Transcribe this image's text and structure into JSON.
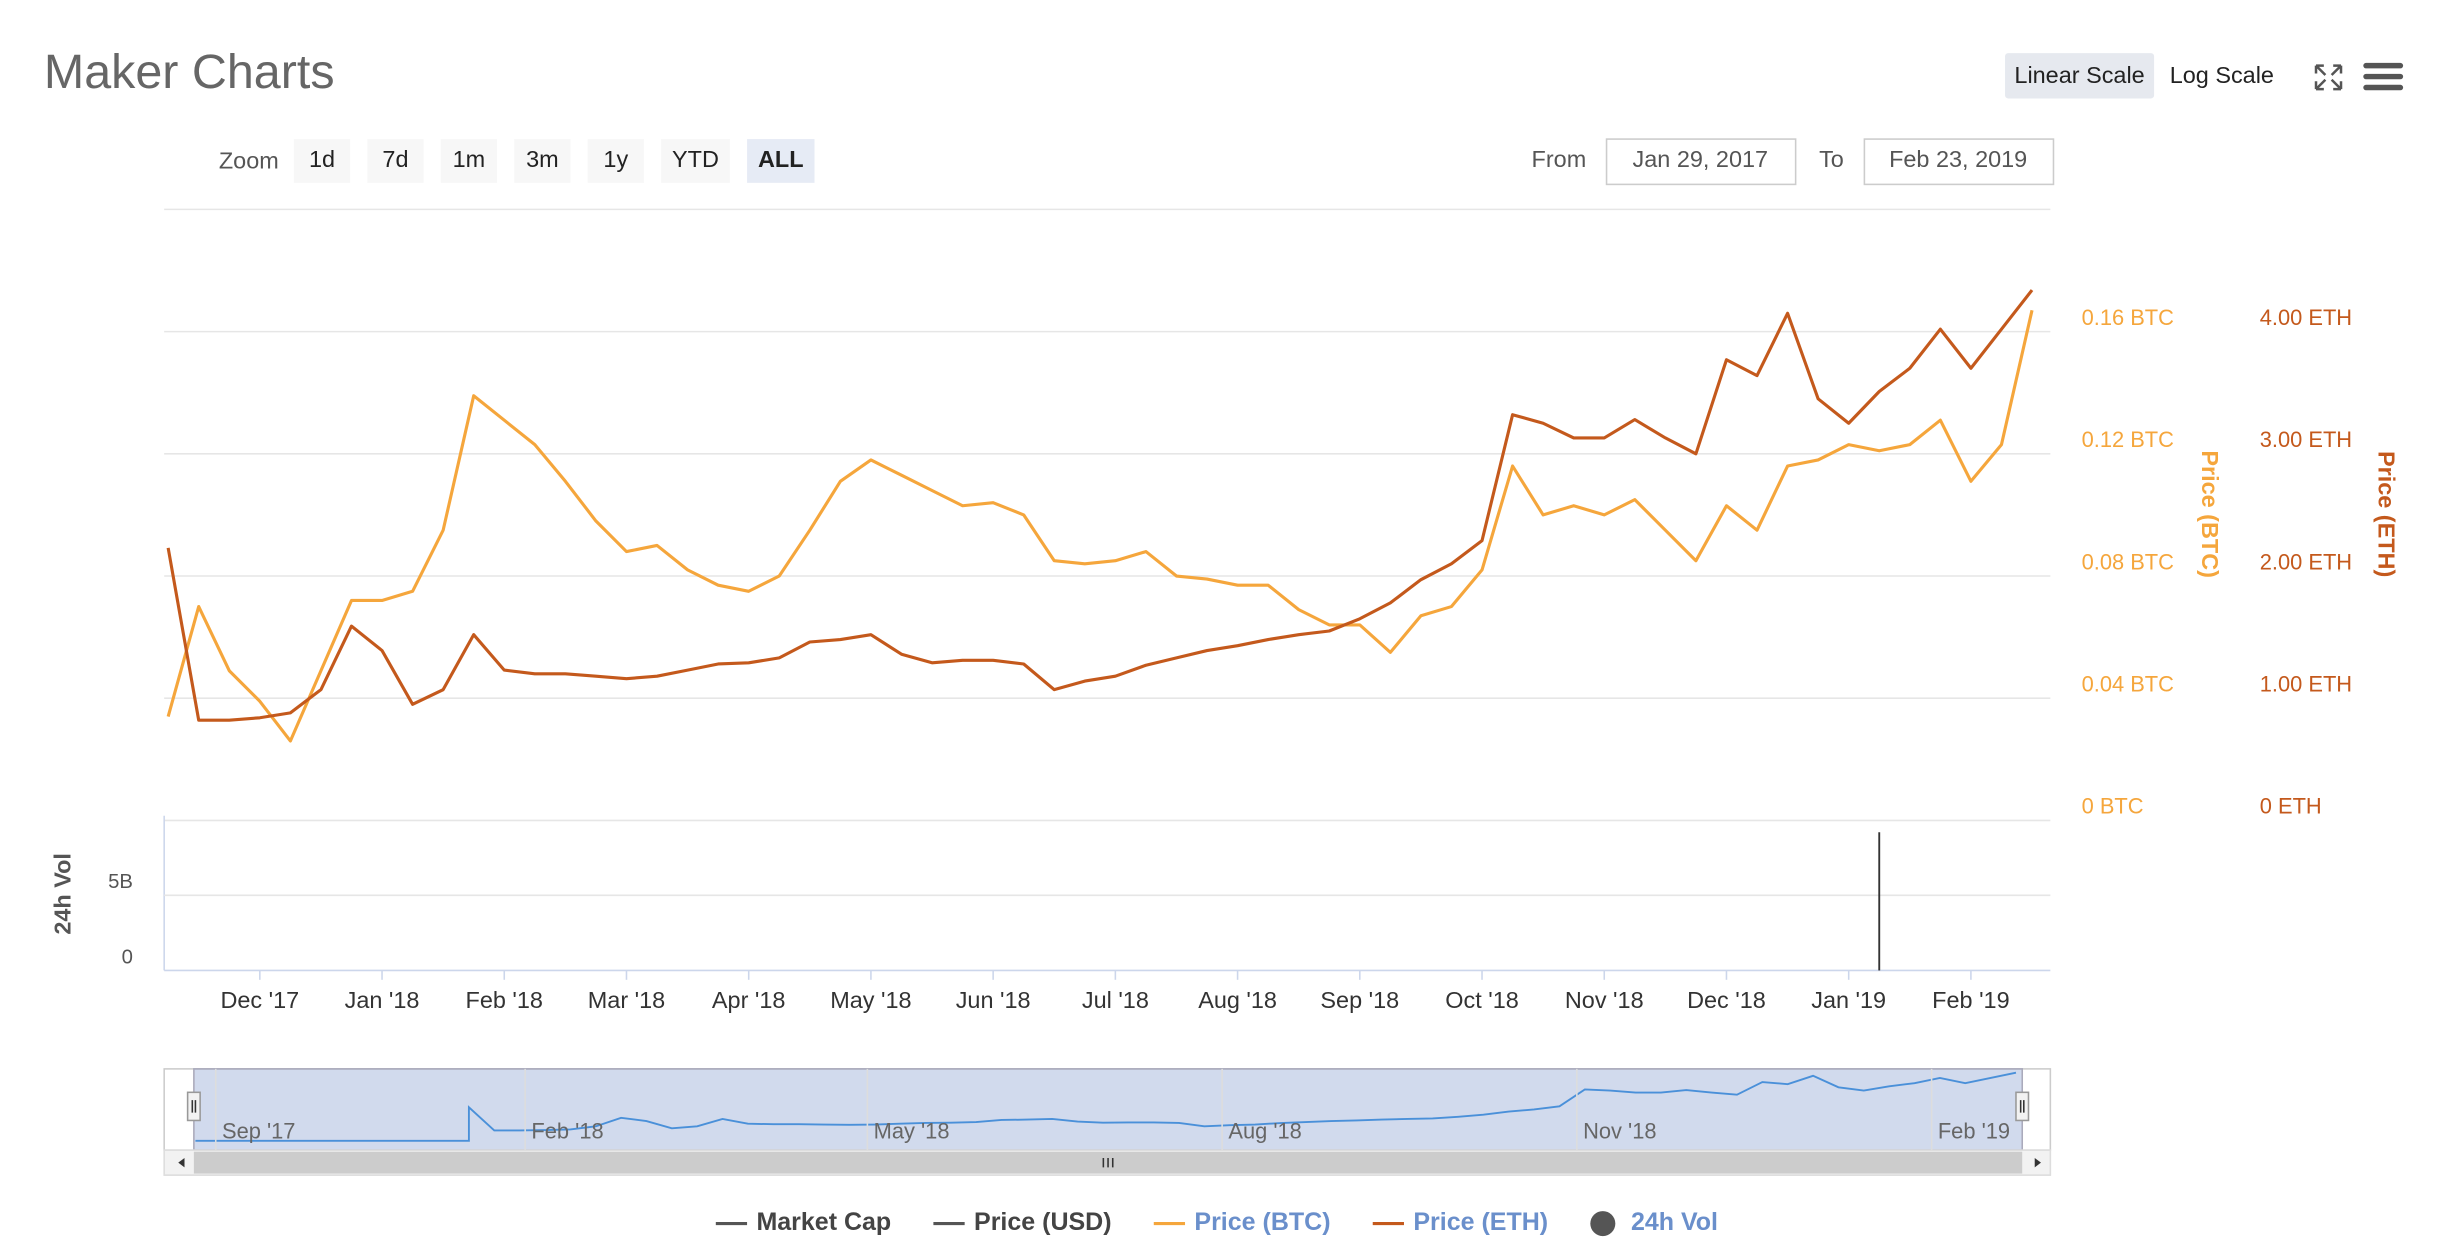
{
  "chart_data": {
    "type": "line",
    "title": "Maker Charts",
    "scale_buttons": [
      "Linear Scale",
      "Log Scale"
    ],
    "active_scale": 0,
    "zoom_label": "Zoom",
    "zoom_buttons": [
      "1d",
      "7d",
      "1m",
      "3m",
      "1y",
      "YTD",
      "ALL"
    ],
    "active_zoom": 6,
    "from_label": "From",
    "from_date": "Jan 29, 2017",
    "to_label": "To",
    "to_date": "Feb 23, 2019",
    "y_label": "Price (BTC)",
    "y2_label": "Price (ETH)",
    "grid": true,
    "xlim": [
      -3.13,
      58.6
    ],
    "xticks": [
      {
        "value": 0,
        "label": "Dec '17"
      },
      {
        "value": 4,
        "label": "Jan '18"
      },
      {
        "value": 8,
        "label": "Feb '18"
      },
      {
        "value": 12,
        "label": "Mar '18"
      },
      {
        "value": 16,
        "label": "Apr '18"
      },
      {
        "value": 20,
        "label": "May '18"
      },
      {
        "value": 24,
        "label": "Jun '18"
      },
      {
        "value": 28,
        "label": "Jul '18"
      },
      {
        "value": 32,
        "label": "Aug '18"
      },
      {
        "value": 36,
        "label": "Sep '18"
      },
      {
        "value": 40,
        "label": "Oct '18"
      },
      {
        "value": 44,
        "label": "Nov '18"
      },
      {
        "value": 48,
        "label": "Dec '18"
      },
      {
        "value": 52,
        "label": "Jan '19"
      },
      {
        "value": 56,
        "label": "Feb '19"
      }
    ],
    "ylim": [
      0,
      0.2
    ],
    "yticks": [
      {
        "value": 0,
        "label": "0 BTC"
      },
      {
        "value": 0.04,
        "label": "0.04 BTC"
      },
      {
        "value": 0.08,
        "label": "0.08 BTC"
      },
      {
        "value": 0.12,
        "label": "0.12 BTC"
      },
      {
        "value": 0.16,
        "label": "0.16 BTC"
      }
    ],
    "y2lim": [
      0,
      5
    ],
    "y2ticks": [
      {
        "value": 0,
        "label": "0 ETH"
      },
      {
        "value": 1,
        "label": "1.00 ETH"
      },
      {
        "value": 2,
        "label": "2.00 ETH"
      },
      {
        "value": 3,
        "label": "3.00 ETH"
      },
      {
        "value": 4,
        "label": "4.00 ETH"
      }
    ],
    "series": [
      {
        "name": "Price (BTC)",
        "color": "#f5a63c",
        "values": [
          0.034,
          0.07,
          0.049,
          0.039,
          0.026,
          0.049,
          0.072,
          0.072,
          0.075,
          0.095,
          0.139,
          0.131,
          0.123,
          0.111,
          0.098,
          0.088,
          0.09,
          0.082,
          0.077,
          0.075,
          0.08,
          0.095,
          0.111,
          0.118,
          0.113,
          0.108,
          0.103,
          0.104,
          0.1,
          0.085,
          0.084,
          0.085,
          0.088,
          0.08,
          0.079,
          0.077,
          0.077,
          0.069,
          0.064,
          0.064,
          0.055,
          0.067,
          0.07,
          0.082,
          0.116,
          0.1,
          0.103,
          0.1,
          0.105,
          0.095,
          0.085,
          0.103,
          0.095,
          0.116,
          0.118,
          0.123,
          0.121,
          0.123,
          0.131,
          0.111,
          0.123,
          0.167
        ]
      },
      {
        "name": "Price (ETH)",
        "color": "#c4591c",
        "axis": "y2",
        "values": [
          2.23,
          0.82,
          0.82,
          0.84,
          0.88,
          1.07,
          1.59,
          1.39,
          0.95,
          1.07,
          1.52,
          1.23,
          1.2,
          1.2,
          1.18,
          1.16,
          1.18,
          1.23,
          1.28,
          1.29,
          1.33,
          1.46,
          1.48,
          1.52,
          1.36,
          1.29,
          1.31,
          1.31,
          1.28,
          1.07,
          1.14,
          1.18,
          1.27,
          1.33,
          1.39,
          1.43,
          1.48,
          1.52,
          1.55,
          1.65,
          1.78,
          1.97,
          2.1,
          2.29,
          3.32,
          3.25,
          3.13,
          3.13,
          3.28,
          3.13,
          3.0,
          3.77,
          3.64,
          4.15,
          3.45,
          3.25,
          3.51,
          3.7,
          4.02,
          3.7,
          4.02,
          4.34
        ]
      }
    ],
    "hidden_series": [
      {
        "name": "Market Cap",
        "color": "#555555"
      },
      {
        "name": "Price (USD)",
        "color": "#555555"
      }
    ],
    "volume": {
      "name": "24h Vol",
      "label": "24h Vol",
      "color": "#555555",
      "ylim": [
        0,
        10300000000
      ],
      "yticks": [
        0,
        {
          "value": 5000000000,
          "label": "5B"
        }
      ],
      "values": [
        0,
        0,
        0,
        0,
        0,
        0,
        0,
        0,
        0,
        0,
        0,
        0,
        0,
        0,
        0,
        0,
        0,
        0,
        0,
        0,
        0,
        0,
        0,
        0,
        0,
        0,
        0,
        0,
        0,
        0,
        0,
        0,
        0,
        0,
        0,
        0,
        0,
        0,
        0,
        0,
        0,
        0,
        0,
        0,
        0,
        0,
        0,
        0,
        0,
        0,
        0,
        0,
        0,
        0,
        0,
        0,
        9200000000,
        0,
        0,
        0,
        0,
        0
      ]
    },
    "navigator_labels": [
      "Sep '17",
      "Feb '18",
      "May '18",
      "Aug '18",
      "Nov '18",
      "Feb '19"
    ]
  }
}
